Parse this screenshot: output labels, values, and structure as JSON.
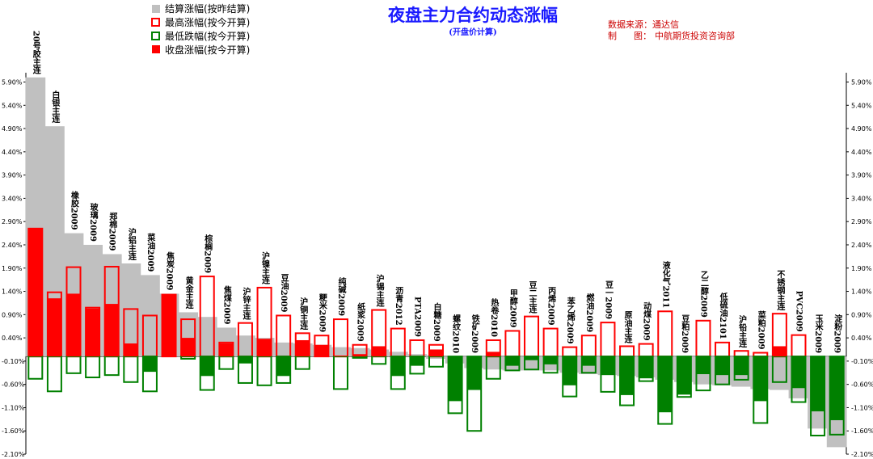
{
  "header": {
    "title": "夜盘主力合约动态涨幅",
    "subtitle": "(开盘价计算)",
    "source_line": "数据来源：通达信",
    "author_label": "制      图：",
    "author_value": "中航期货投资咨询部"
  },
  "legend": [
    {
      "label": "结算涨幅(按昨结算)",
      "style": "solid",
      "color": "#c0c0c0"
    },
    {
      "label": "最高涨幅(按今开算)",
      "style": "outline",
      "color": "#ff0000"
    },
    {
      "label": "最低跌幅(按今开算)",
      "style": "outline",
      "color": "#008000"
    },
    {
      "label": "收盘涨幅(按今开算)",
      "style": "solid",
      "color": "#ff0000"
    }
  ],
  "colors": {
    "settle": "#c0c0c0",
    "up": "#ff0000",
    "down": "#008000",
    "title": "#1a1aff",
    "source": "#cc0000",
    "axis": "#000000"
  },
  "chart_data": {
    "type": "bar",
    "title": "夜盘主力合约动态涨幅",
    "subtitle": "(开盘价计算)",
    "ylim": [
      -2.1,
      6.1
    ],
    "y_ticks": [
      "5.90%",
      "5.40%",
      "4.90%",
      "4.40%",
      "3.90%",
      "3.40%",
      "2.90%",
      "2.40%",
      "1.90%",
      "1.40%",
      "0.90%",
      "0.40%",
      "-0.10%",
      "-0.60%",
      "-1.10%",
      "-1.60%",
      "-2.10%"
    ],
    "y_tick_values": [
      5.9,
      5.4,
      4.9,
      4.4,
      3.9,
      3.4,
      2.9,
      2.4,
      1.9,
      1.4,
      0.9,
      0.4,
      -0.1,
      -0.6,
      -1.1,
      -1.6,
      -2.1
    ],
    "categories": [
      "20号胶主连",
      "白银主连",
      "橡胶2009",
      "玻璃2009",
      "郑棉2009",
      "沪铝主连",
      "菜油2009",
      "焦炭2009",
      "黄金主连",
      "棕榈2009",
      "焦煤2009",
      "沪锌主连",
      "沪镍主连",
      "豆油2009",
      "沪铜主连",
      "粳米2009",
      "纯碱2009",
      "纸浆2009",
      "沪锡主连",
      "沥青2012",
      "PTA2009",
      "白糖2009",
      "螺纹2010",
      "铁矿2009",
      "热卷2010",
      "甲醇2009",
      "豆二主连",
      "丙烯2009",
      "苯乙烯2009",
      "燃油2009",
      "豆一2009",
      "原油主连",
      "动煤2009",
      "液化气2011",
      "豆粕2009",
      "乙二醇2009",
      "低硫油2101",
      "沪铅主连",
      "菜粕2009",
      "不锈钢主连",
      "PVC2009",
      "玉米2009",
      "淀粉2009"
    ],
    "series": [
      {
        "name": "结算涨幅(按昨结算)",
        "values": [
          6.0,
          4.95,
          2.65,
          2.4,
          2.2,
          2.0,
          1.75,
          1.35,
          0.95,
          0.85,
          0.62,
          0.45,
          0.4,
          0.3,
          0.28,
          0.25,
          0.2,
          0.18,
          0.15,
          0.1,
          0.05,
          -0.05,
          -0.15,
          -0.25,
          -0.28,
          -0.3,
          -0.3,
          -0.3,
          -0.35,
          -0.38,
          -0.4,
          -0.42,
          -0.45,
          -0.5,
          -0.55,
          -0.6,
          -0.62,
          -0.65,
          -0.7,
          -0.72,
          -0.9,
          -1.55,
          -1.95
        ]
      },
      {
        "name": "最高涨幅(按今开算)",
        "values": [
          2.75,
          1.38,
          1.92,
          1.05,
          1.93,
          1.02,
          0.88,
          1.33,
          0.8,
          1.72,
          0.3,
          0.72,
          1.48,
          0.88,
          0.5,
          0.45,
          0.8,
          0.25,
          1.0,
          0.6,
          0.35,
          0.25,
          0.0,
          0.0,
          0.35,
          0.55,
          0.86,
          0.6,
          0.2,
          0.45,
          0.73,
          0.22,
          0.27,
          0.97,
          0.0,
          0.77,
          0.3,
          0.12,
          0.08,
          0.92,
          0.46,
          0.0,
          0.0
        ]
      },
      {
        "name": "最低跌幅(按今开算)",
        "values": [
          -0.48,
          -0.75,
          -0.36,
          -0.45,
          -0.4,
          -0.55,
          -0.75,
          0.0,
          -0.05,
          -0.72,
          -0.27,
          -0.57,
          -0.62,
          -0.57,
          -0.27,
          0.0,
          -0.7,
          -0.03,
          -0.16,
          -0.7,
          -0.37,
          -0.22,
          -1.22,
          -1.6,
          -0.48,
          -0.3,
          -0.28,
          -0.35,
          -0.86,
          -0.35,
          -0.76,
          -1.05,
          -0.53,
          -1.45,
          -0.87,
          -0.73,
          -0.6,
          -0.5,
          -1.43,
          -0.55,
          -0.98,
          -1.7,
          -1.68
        ]
      },
      {
        "name": "收盘涨幅(按今开算)",
        "values": [
          2.75,
          1.25,
          1.35,
          1.03,
          1.13,
          0.28,
          -0.33,
          1.33,
          0.4,
          -0.42,
          0.28,
          -0.15,
          0.38,
          -0.42,
          0.35,
          0.25,
          0.02,
          0.05,
          0.22,
          -0.42,
          -0.2,
          0.15,
          -0.96,
          -0.72,
          0.1,
          -0.2,
          -0.08,
          -0.17,
          -0.62,
          -0.2,
          -0.4,
          -0.83,
          -0.47,
          -1.2,
          -0.82,
          -0.38,
          -0.4,
          -0.4,
          -0.96,
          0.22,
          -0.68,
          -1.18,
          -1.37
        ]
      }
    ]
  }
}
